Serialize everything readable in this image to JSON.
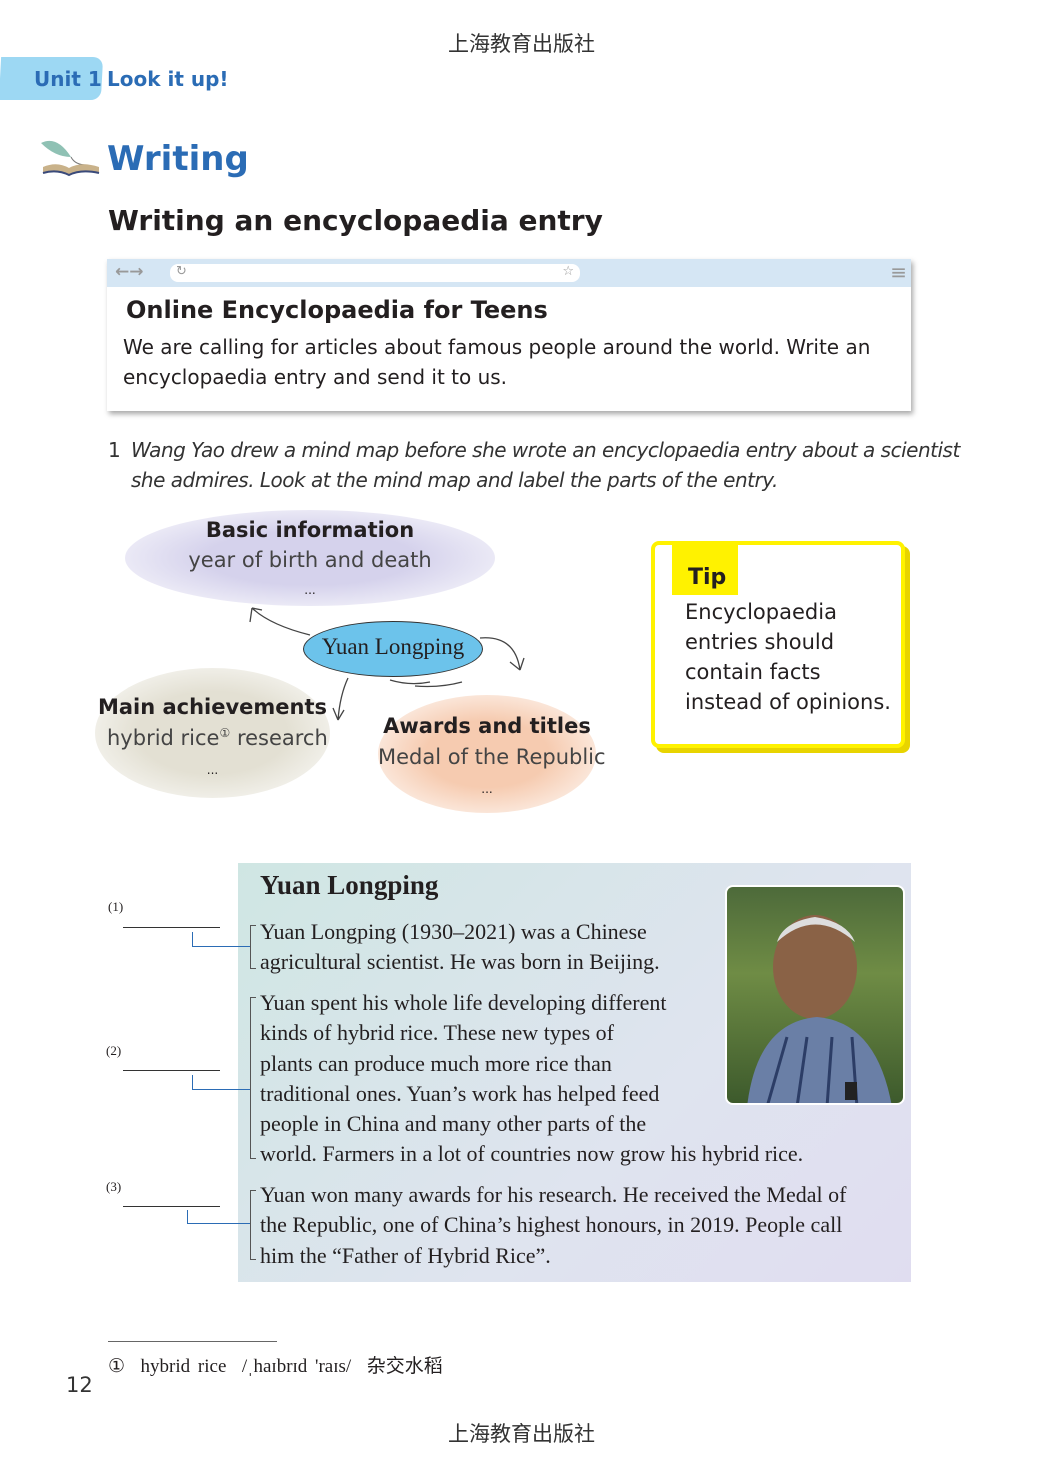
{
  "publisher_header": "上海教育出版社",
  "unit": {
    "label": "Unit 1",
    "title": "Look it up!"
  },
  "section": {
    "title": "Writing",
    "subtitle": "Writing an encyclopaedia entry"
  },
  "browser": {
    "icons": [
      "back-arrow",
      "forward-arrow",
      "refresh",
      "star",
      "menu"
    ],
    "title": "Online Encyclopaedia for Teens",
    "body_lines": [
      "We are calling for articles about famous people around the world. Write an",
      "encyclopaedia entry and send it to us."
    ]
  },
  "task": {
    "number": "1",
    "lines": [
      "Wang Yao drew a mind map before she wrote an encyclopaedia entry about a scientist",
      "she admires. Look at the mind map and label the parts of the entry."
    ]
  },
  "mind_map": {
    "center": "Yuan Longping",
    "basic": {
      "title": "Basic information",
      "item": "year of birth and death",
      "more": "..."
    },
    "achievements": {
      "title": "Main achievements",
      "item_a": "hybrid rice",
      "note": "①",
      "item_b": "research",
      "more": "..."
    },
    "awards": {
      "title": "Awards and titles",
      "item": "Medal of the Republic",
      "more": "..."
    }
  },
  "tip": {
    "label": "Tip",
    "lines": [
      "Encyclopaedia",
      "entries should",
      "contain facts",
      "instead of opinions."
    ]
  },
  "article": {
    "title": "Yuan Longping",
    "labels": [
      "(1)",
      "(2)",
      "(3)"
    ],
    "para1": [
      "Yuan Longping (1930–2021) was a Chinese",
      "agricultural scientist. He was born in Beijing."
    ],
    "para2": [
      "Yuan spent his whole life developing different",
      "kinds of hybrid rice. These new types of",
      "plants can produce much more rice than",
      "traditional ones. Yuan’s work has helped feed",
      "people in China and many other parts of the",
      "world. Farmers in a lot of countries now grow his hybrid rice."
    ],
    "para3": [
      "Yuan won many awards for his research. He received the Medal of",
      "the Republic, one of China’s highest honours, in 2019. People call",
      "him the “Father of Hybrid Rice”."
    ]
  },
  "footnote": {
    "marker": "①",
    "term": "hybrid rice",
    "phonetic": "/ˌhaɪbrɪd 'raɪs/",
    "translation": "杂交水稻"
  },
  "page_number": "12",
  "publisher_footer": "上海教育出版社"
}
